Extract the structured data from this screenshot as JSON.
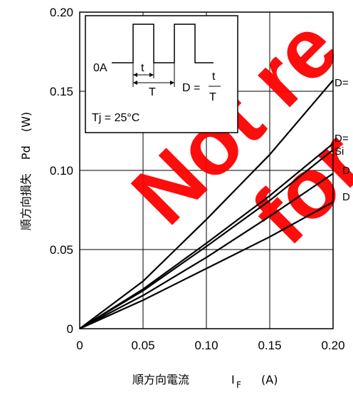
{
  "chart_data": {
    "type": "line",
    "xlabel_main": "順方向電流",
    "xlabel_symbol": "I",
    "xlabel_sub": "F",
    "xlabel_unit": "(A)",
    "ylabel_main": "順方向損失",
    "ylabel_symbol": "Pd",
    "ylabel_unit": "(W)",
    "xlim": [
      0,
      0.2
    ],
    "ylim": [
      0,
      0.2
    ],
    "x_ticks": [
      "0",
      "0.05",
      "0.10",
      "0.15",
      "0.20"
    ],
    "y_ticks": [
      "0",
      "0.05",
      "0.10",
      "0.15",
      "0.20"
    ],
    "grid": true,
    "series": [
      {
        "name": "D=",
        "x": [
          0,
          0.05,
          0.1,
          0.15,
          0.2
        ],
        "y": [
          0,
          0.03,
          0.069,
          0.11,
          0.157
        ]
      },
      {
        "name": "D=",
        "x": [
          0,
          0.05,
          0.1,
          0.15,
          0.2
        ],
        "y": [
          0,
          0.025,
          0.054,
          0.084,
          0.117
        ]
      },
      {
        "name": "Si",
        "x": [
          0,
          0.05,
          0.1,
          0.15,
          0.2
        ],
        "y": [
          0,
          0.024,
          0.052,
          0.081,
          0.113
        ]
      },
      {
        "name": "D",
        "x": [
          0,
          0.05,
          0.1,
          0.15,
          0.2
        ],
        "y": [
          0,
          0.021,
          0.045,
          0.071,
          0.098
        ]
      },
      {
        "name": "D",
        "x": [
          0,
          0.05,
          0.1,
          0.15,
          0.2
        ],
        "y": [
          0,
          0.018,
          0.038,
          0.058,
          0.08
        ]
      }
    ],
    "inset": {
      "zero_label": "0A",
      "t_label": "t",
      "T_label": "T",
      "d_formula_left": "D =",
      "frac_num": "t",
      "frac_den": "T",
      "tj_label": "Tj = 25°C"
    },
    "watermark": [
      "Not re",
      "for"
    ]
  },
  "colors": {
    "watermark": "#ff0000",
    "lines": "#000000"
  }
}
